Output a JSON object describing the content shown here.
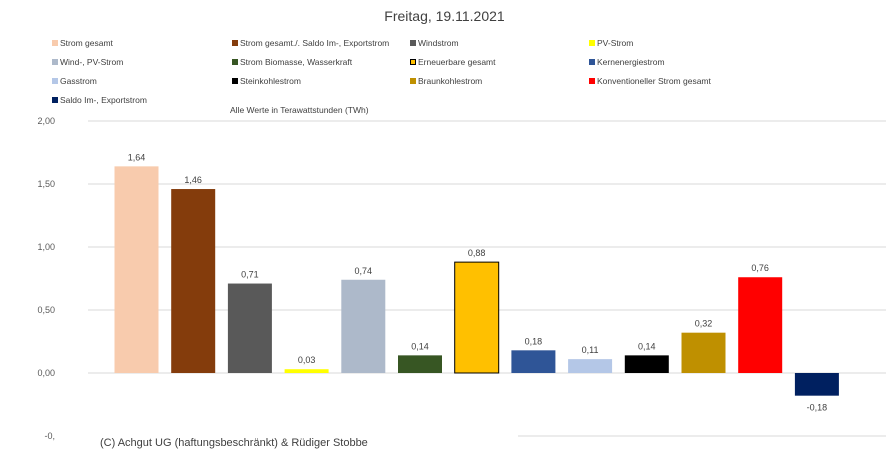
{
  "chart_data": {
    "type": "bar",
    "title": "Freitag, 19.11.2021",
    "note": "Alle Werte in Terawattstunden (TWh)",
    "credit": "(C) Achgut UG (haftungsbeschränkt) & Rüdiger Stobbe",
    "ylim": [
      -0.5,
      2.0
    ],
    "yticks": [
      "2,00",
      "1,50",
      "1,00",
      "0,50",
      "0,00",
      "-0,"
    ],
    "ytick_values": [
      2.0,
      1.5,
      1.0,
      0.5,
      0.0,
      -0.5
    ],
    "grid": true,
    "legend_position": "top",
    "categories": [
      "Strom gesamt",
      "Strom gesamt./. Saldo Im-, Exportstrom",
      "Windstrom",
      "PV-Strom",
      "Wind-, PV-Strom",
      "Strom Biomasse, Wasserkraft",
      "Erneuerbare gesamt",
      "Kernenergiestrom",
      "Gasstrom",
      "Steinkohlestrom",
      "Braunkohlestrom",
      "Konventioneller Strom gesamt",
      "Saldo Im-, Exportstrom"
    ],
    "values": [
      1.64,
      1.46,
      0.71,
      0.03,
      0.74,
      0.14,
      0.88,
      0.18,
      0.11,
      0.14,
      0.32,
      0.76,
      -0.18
    ],
    "labels": [
      "1,64",
      "1,46",
      "0,71",
      "0,03",
      "0,74",
      "0,14",
      "0,88",
      "0,18",
      "0,11",
      "0,14",
      "0,32",
      "0,76",
      "-0,18"
    ],
    "colors": [
      "#f8cbad",
      "#843c0c",
      "#595959",
      "#ffff00",
      "#adb9ca",
      "#375623",
      "#ffc000",
      "#2f5597",
      "#b4c7e7",
      "#000000",
      "#bf9000",
      "#ff0000",
      "#002060"
    ]
  }
}
